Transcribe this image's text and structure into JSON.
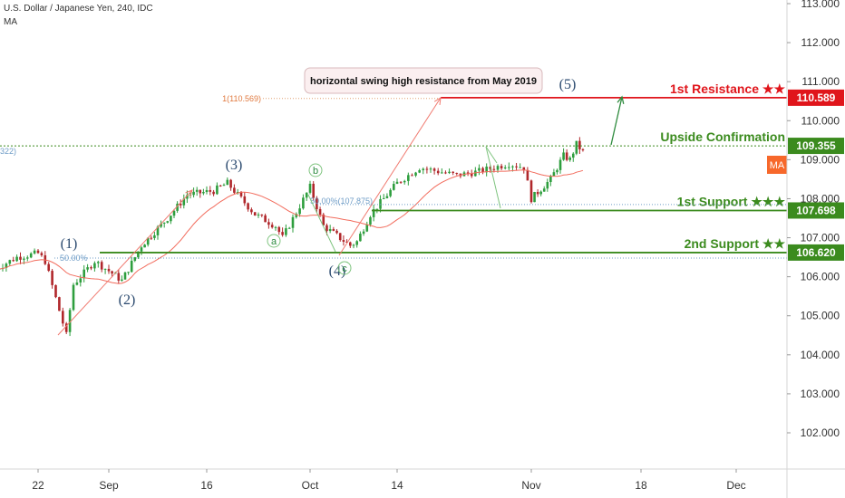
{
  "header": {
    "title": "U.S. Dollar / Japanese Yen, 240, IDC",
    "indicator": "MA"
  },
  "colors": {
    "up": "#2e9e3e",
    "down": "#b0272b",
    "ma": "#f26c5d",
    "resistance": "#e0151b",
    "support": "#3b8b1e",
    "confirmation": "#3b8b1e",
    "ma_tag": "#f7682b",
    "wave_text": "#2b4a6f",
    "fib": "#6f9dc7",
    "axis_text": "#333333"
  },
  "chart_data": {
    "type": "candlestick",
    "symbol": "USDJPY",
    "timeframe": "240",
    "source": "IDC",
    "ylim": [
      101.3,
      113.0
    ],
    "y_ticks": [
      "113.000",
      "112.000",
      "111.000",
      "110.000",
      "109.000",
      "108.000",
      "107.000",
      "106.000",
      "105.000",
      "104.000",
      "103.000",
      "102.000"
    ],
    "x_ticks": [
      "22",
      "Sep",
      "16",
      "Oct",
      "14",
      "Nov",
      "18",
      "Dec"
    ],
    "price_path": [
      {
        "date": "Aug 16",
        "price": 106.2
      },
      {
        "date": "Aug 19",
        "price": 106.5
      },
      {
        "date": "Aug 22",
        "price": 106.6
      },
      {
        "date": "Aug 23",
        "price": 106.4
      },
      {
        "date": "Aug 26",
        "price": 104.5
      },
      {
        "date": "Aug 27",
        "price": 105.8
      },
      {
        "date": "Aug 30",
        "price": 106.4
      },
      {
        "date": "Sep 3",
        "price": 105.9
      },
      {
        "date": "Sep 6",
        "price": 106.8
      },
      {
        "date": "Sep 10",
        "price": 107.5
      },
      {
        "date": "Sep 13",
        "price": 108.1
      },
      {
        "date": "Sep 17",
        "price": 108.2
      },
      {
        "date": "Sep 19",
        "price": 108.4
      },
      {
        "date": "Sep 23",
        "price": 107.6
      },
      {
        "date": "Sep 26",
        "price": 107.3
      },
      {
        "date": "Sep 27",
        "price": 107.0
      },
      {
        "date": "Oct 1",
        "price": 108.3
      },
      {
        "date": "Oct 3",
        "price": 107.3
      },
      {
        "date": "Oct 7",
        "price": 106.8
      },
      {
        "date": "Oct 8",
        "price": 106.9
      },
      {
        "date": "Oct 10",
        "price": 107.6
      },
      {
        "date": "Oct 14",
        "price": 108.4
      },
      {
        "date": "Oct 17",
        "price": 108.8
      },
      {
        "date": "Oct 22",
        "price": 108.6
      },
      {
        "date": "Oct 25",
        "price": 108.7
      },
      {
        "date": "Oct 29",
        "price": 108.9
      },
      {
        "date": "Oct 31",
        "price": 108.8
      },
      {
        "date": "Nov 1",
        "price": 108.0
      },
      {
        "date": "Nov 4",
        "price": 108.5
      },
      {
        "date": "Nov 6",
        "price": 109.1
      },
      {
        "date": "Nov 7",
        "price": 109.0
      },
      {
        "date": "Nov 8",
        "price": 109.4
      },
      {
        "date": "Nov 9",
        "price": 109.2
      }
    ],
    "levels": [
      {
        "name": "1st Resistance ★★",
        "price": "110.589",
        "kind": "resistance"
      },
      {
        "name": "Upside Confirmation",
        "price": "109.355",
        "kind": "confirmation"
      },
      {
        "name": "1st Support ★★★",
        "price": "107.698",
        "kind": "support"
      },
      {
        "name": "2nd Support ★★",
        "price": "106.620",
        "kind": "support"
      }
    ],
    "ma_tag": "MA",
    "wave_labels": [
      "(1)",
      "(2)",
      "(3)",
      "(4)",
      "(5)"
    ],
    "sub_wave_labels": [
      "a",
      "b",
      "c"
    ],
    "fib_labels": [
      "1(110.569)",
      "50.00%",
      "50.00%(107.875)",
      "322)"
    ],
    "annotation": "horizontal swing high resistance from May 2019",
    "grid": false,
    "legend": "none"
  }
}
